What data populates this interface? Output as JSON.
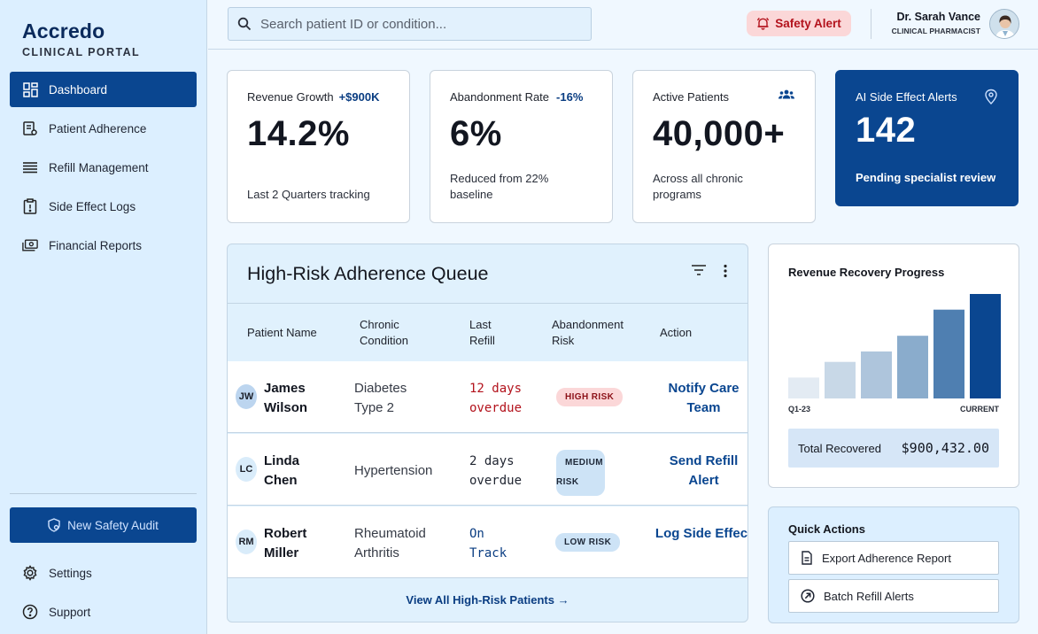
{
  "brand": {
    "name": "Accredo",
    "subtitle": "CLINICAL PORTAL"
  },
  "sidebar": {
    "items": [
      {
        "label": "Dashboard",
        "icon": "dashboard-icon",
        "active": true
      },
      {
        "label": "Patient Adherence",
        "icon": "clipboard-icon"
      },
      {
        "label": "Refill Management",
        "icon": "list-icon"
      },
      {
        "label": "Side Effect Logs",
        "icon": "alert-clipboard-icon"
      },
      {
        "label": "Financial Reports",
        "icon": "money-icon"
      }
    ],
    "audit_button": "New Safety Audit",
    "bottom": [
      {
        "label": "Settings",
        "icon": "gear-icon"
      },
      {
        "label": "Support",
        "icon": "help-icon"
      }
    ]
  },
  "topbar": {
    "search_placeholder": "Search patient ID or condition...",
    "safety_alert": "Safety Alert",
    "user_name": "Dr. Sarah Vance",
    "user_role": "CLINICAL PHARMACIST"
  },
  "kpis": [
    {
      "label": "Revenue Growth",
      "delta": "+$900K",
      "value": "14.2%",
      "foot": "Last 2 Quarters tracking"
    },
    {
      "label": "Abandonment Rate",
      "delta": "-16%",
      "value": "6%",
      "foot": "Reduced from 22% baseline"
    },
    {
      "label": "Active Patients",
      "value": "40,000+",
      "foot": "Across all chronic programs"
    },
    {
      "label": "AI Side Effect Alerts",
      "value": "142",
      "foot": "Pending specialist review"
    }
  ],
  "queue": {
    "title": "High-Risk Adherence Queue",
    "headers": [
      "Patient Name",
      "Chronic Condition",
      "Last Refill",
      "Abandonment Risk",
      "Action"
    ],
    "rows": [
      {
        "initials": "JW",
        "name": "James Wilson",
        "condition": "Diabetes Type 2",
        "refill": "12 days overdue",
        "risk": "HIGH RISK",
        "action": "Notify Care Team"
      },
      {
        "initials": "LC",
        "name": "Linda Chen",
        "condition": "Hypertension",
        "refill": "2 days overdue",
        "risk": "MEDIUM RISK",
        "action": "Send Refill Alert"
      },
      {
        "initials": "RM",
        "name": "Robert Miller",
        "condition": "Rheumatoid Arthritis",
        "refill": "On Track",
        "risk": "LOW RISK",
        "action": "Log Side Effect"
      }
    ],
    "view_all": "View All High-Risk Patients →"
  },
  "revenue": {
    "title": "Revenue Recovery Progress",
    "total_label": "Total Recovered",
    "total_value": "$900,432.00"
  },
  "chart_data": {
    "type": "bar",
    "title": "Revenue Recovery Progress",
    "categories": [
      "Q1-23",
      "",
      "",
      "",
      "",
      "CURRENT"
    ],
    "values": [
      20,
      35,
      45,
      60,
      85,
      100
    ],
    "ylim": [
      0,
      100
    ],
    "colors": [
      "#e3ebf3",
      "#c8d8e7",
      "#aec5dc",
      "#8aaccc",
      "#4f7fb1",
      "#0a4690"
    ]
  },
  "quick_actions": {
    "title": "Quick Actions",
    "buttons": [
      "Export Adherence Report",
      "Batch Refill Alerts"
    ]
  }
}
